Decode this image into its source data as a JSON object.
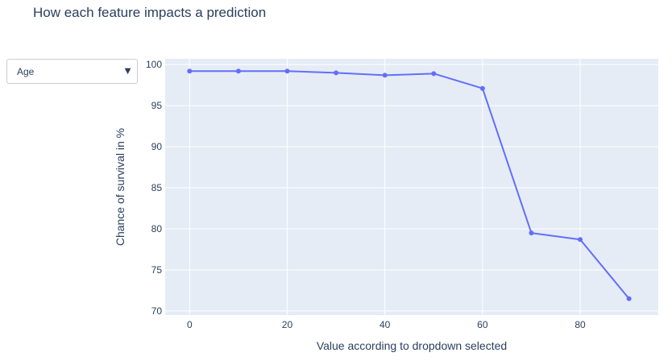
{
  "chart_title": "How each feature impacts a prediction",
  "dropdown": {
    "selected": "Age",
    "arrow_icon": "triangle-down-icon"
  },
  "colors": {
    "plot_background": "#e5ecf6",
    "grid": "#ffffff",
    "line": "#636efa",
    "text": "#2a3f5f"
  },
  "chart_data": {
    "type": "line",
    "title": "How each feature impacts a prediction",
    "xlabel": "Value according to dropdown selected",
    "ylabel": "Chance of survival in %",
    "xlim": [
      -5,
      96
    ],
    "ylim": [
      69.5,
      100.7
    ],
    "xticks": [
      0,
      20,
      40,
      60,
      80
    ],
    "yticks": [
      70,
      75,
      80,
      85,
      90,
      95,
      100
    ],
    "grid": true,
    "mode": "lines+markers",
    "series": [
      {
        "x": [
          0,
          10,
          20,
          30,
          40,
          50,
          60,
          70,
          80,
          90
        ],
        "y": [
          99.2,
          99.2,
          99.2,
          99.0,
          98.7,
          98.9,
          97.1,
          79.5,
          78.7,
          71.5
        ]
      }
    ]
  }
}
